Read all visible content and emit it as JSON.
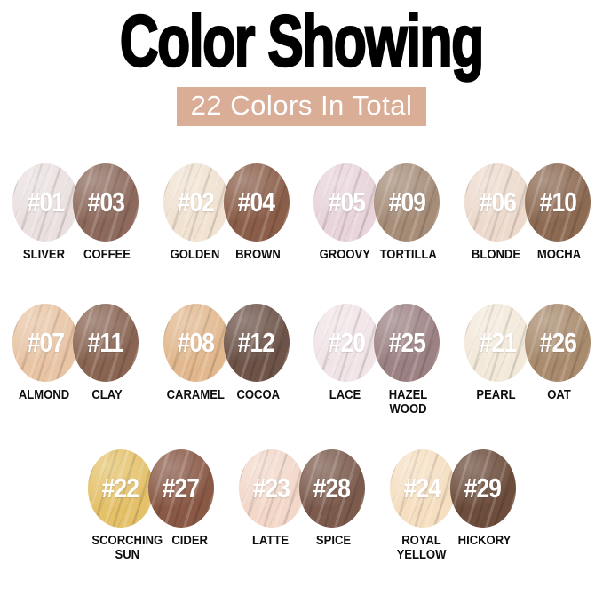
{
  "title": "Color Showing",
  "subtitle": "22 Colors In Total",
  "theme": {
    "subtitle_bg": "#d9ad96",
    "subtitle_text": "#ffffff",
    "title_text": "#000000",
    "number_text": "#ffffff",
    "label_text": "#0d0d0d"
  },
  "rows": [
    [
      {
        "left": {
          "number": "#01",
          "name": "SLIVER",
          "color": "#ebe0e0"
        },
        "right": {
          "number": "#03",
          "name": "COFFEE",
          "color": "#8d6a5c"
        }
      },
      {
        "left": {
          "number": "#02",
          "name": "GOLDEN",
          "color": "#f1e2d1"
        },
        "right": {
          "number": "#04",
          "name": "BROWN",
          "color": "#8b5e49"
        }
      },
      {
        "left": {
          "number": "#05",
          "name": "GROOVY",
          "color": "#e8d4da"
        },
        "right": {
          "number": "#09",
          "name": "TORTILLA",
          "color": "#a68d78"
        }
      },
      {
        "left": {
          "number": "#06",
          "name": "BLONDE",
          "color": "#eddacd"
        },
        "right": {
          "number": "#10",
          "name": "MOCHA",
          "color": "#8d6a52"
        }
      }
    ],
    [
      {
        "left": {
          "number": "#07",
          "name": "ALMOND",
          "color": "#e9c5a5"
        },
        "right": {
          "number": "#11",
          "name": "CLAY",
          "color": "#8a6553"
        }
      },
      {
        "left": {
          "number": "#08",
          "name": "CARAMEL",
          "color": "#e2b88e"
        },
        "right": {
          "number": "#12",
          "name": "COCOA",
          "color": "#6d5348"
        }
      },
      {
        "left": {
          "number": "#20",
          "name": "LACE",
          "color": "#f1e4e7"
        },
        "right": {
          "number": "#25",
          "name": "HAZEL WOOD",
          "color": "#9d8284"
        }
      },
      {
        "left": {
          "number": "#21",
          "name": "PEARL",
          "color": "#f3e9da"
        },
        "right": {
          "number": "#26",
          "name": "OAT",
          "color": "#a98b6d"
        }
      }
    ],
    [
      {
        "left": {
          "number": "#22",
          "name": "SCORCHING SUN",
          "color": "#e5c26a"
        },
        "right": {
          "number": "#27",
          "name": "CIDER",
          "color": "#8a5946"
        }
      },
      {
        "left": {
          "number": "#23",
          "name": "LATTE",
          "color": "#f3d8ca"
        },
        "right": {
          "number": "#28",
          "name": "SPICE",
          "color": "#7c5b4d"
        }
      },
      {
        "left": {
          "number": "#24",
          "name": "ROYAL YELLOW",
          "color": "#f6dfc1"
        },
        "right": {
          "number": "#29",
          "name": "HICKORY",
          "color": "#6d4d3c"
        }
      }
    ]
  ]
}
